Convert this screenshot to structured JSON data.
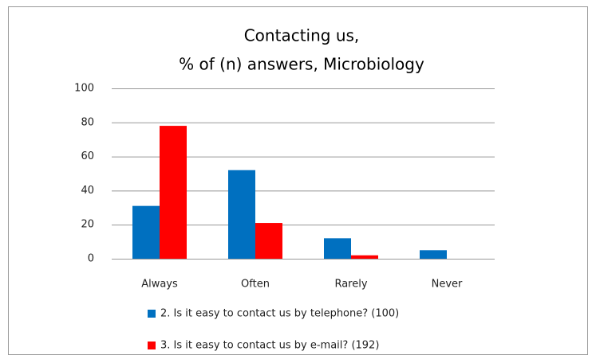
{
  "chart_data": {
    "type": "bar",
    "title": [
      "Contacting us,",
      "% of  (n) answers, Microbiology"
    ],
    "categories": [
      "Always",
      "Often",
      "Rarely",
      "Never"
    ],
    "series": [
      {
        "name": "2. Is it easy to contact us by telephone? (100)",
        "color": "#0070c0",
        "values": [
          31,
          52,
          12,
          5
        ]
      },
      {
        "name": "3. Is it easy to contact us by e-mail? (192)",
        "color": "#ff0000",
        "values": [
          78,
          21,
          2,
          0
        ]
      }
    ],
    "ylim": [
      0,
      100
    ],
    "yticks": [
      0,
      20,
      40,
      60,
      80,
      100
    ],
    "grid": true,
    "legend": "bottom"
  }
}
